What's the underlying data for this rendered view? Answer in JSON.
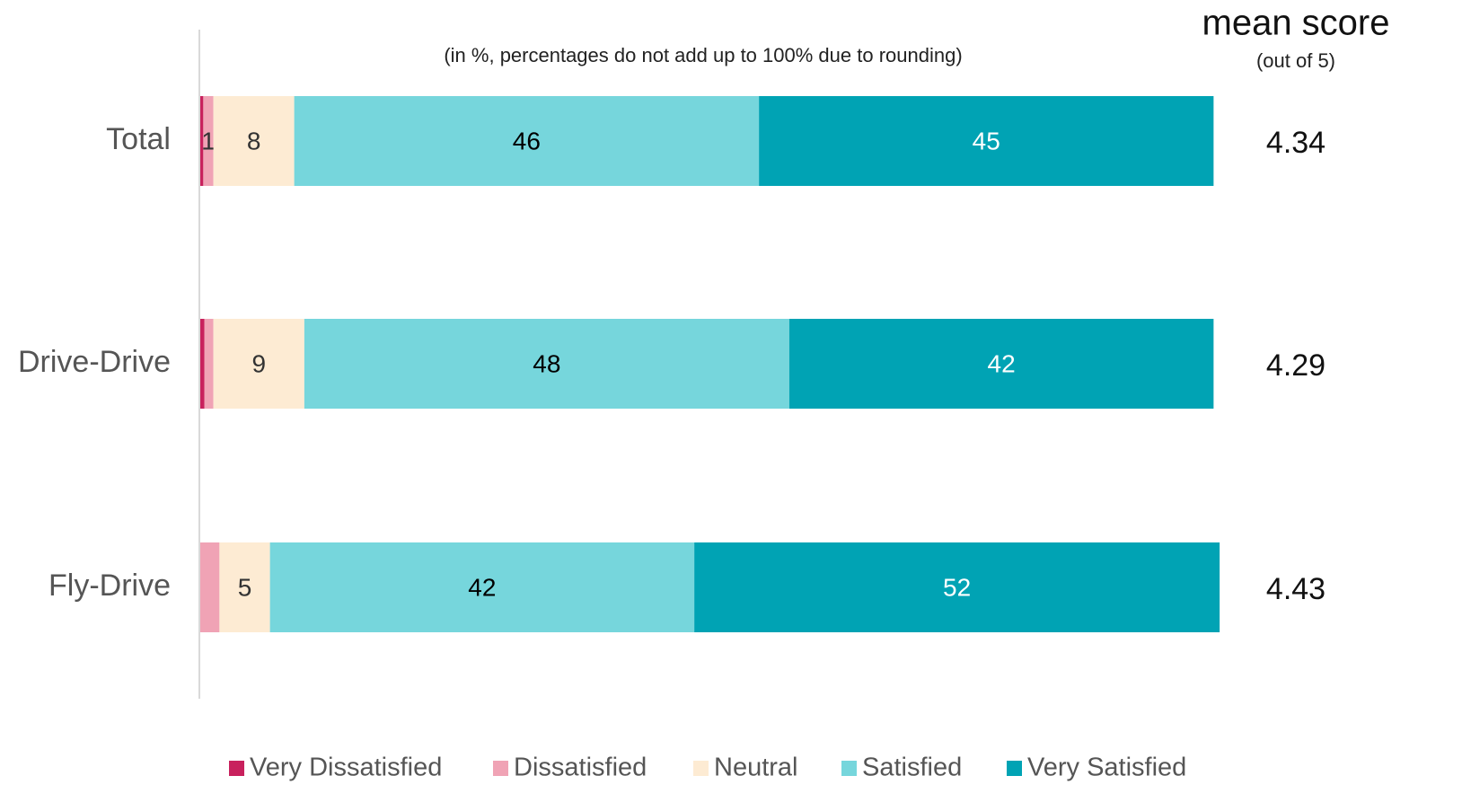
{
  "chart_data": {
    "type": "stacked_barh",
    "subtitle": "(in %, percentages do not add up to 100% due to rounding)",
    "mean_title": "mean score",
    "mean_subtitle": "(out of 5)",
    "categories": [
      "Total",
      "Drive-Drive",
      "Fly-Drive"
    ],
    "xlim": [
      0,
      100
    ],
    "series": [
      {
        "name": "Very Dissatisfied",
        "color": "#c8215d",
        "values": [
          0.3,
          0.4,
          0
        ],
        "value_labels": [
          null,
          null,
          null
        ]
      },
      {
        "name": "Dissatisfied",
        "color": "#f0a3b5",
        "values": [
          1,
          0.9,
          1.9
        ],
        "value_labels": [
          "1",
          null,
          null
        ]
      },
      {
        "name": "Neutral",
        "color": "#fdebd3",
        "values": [
          8,
          9,
          5
        ],
        "value_labels": [
          "8",
          "9",
          "5"
        ]
      },
      {
        "name": "Satisfied",
        "color": "#76d6dc",
        "values": [
          46,
          48,
          42
        ],
        "value_labels": [
          "46",
          "48",
          "42"
        ]
      },
      {
        "name": "Very Satisfied",
        "color": "#00a3b4",
        "values": [
          45,
          42,
          52
        ],
        "value_labels": [
          "45",
          "42",
          "52"
        ]
      }
    ],
    "mean_scores": [
      4.34,
      4.29,
      4.43
    ]
  }
}
